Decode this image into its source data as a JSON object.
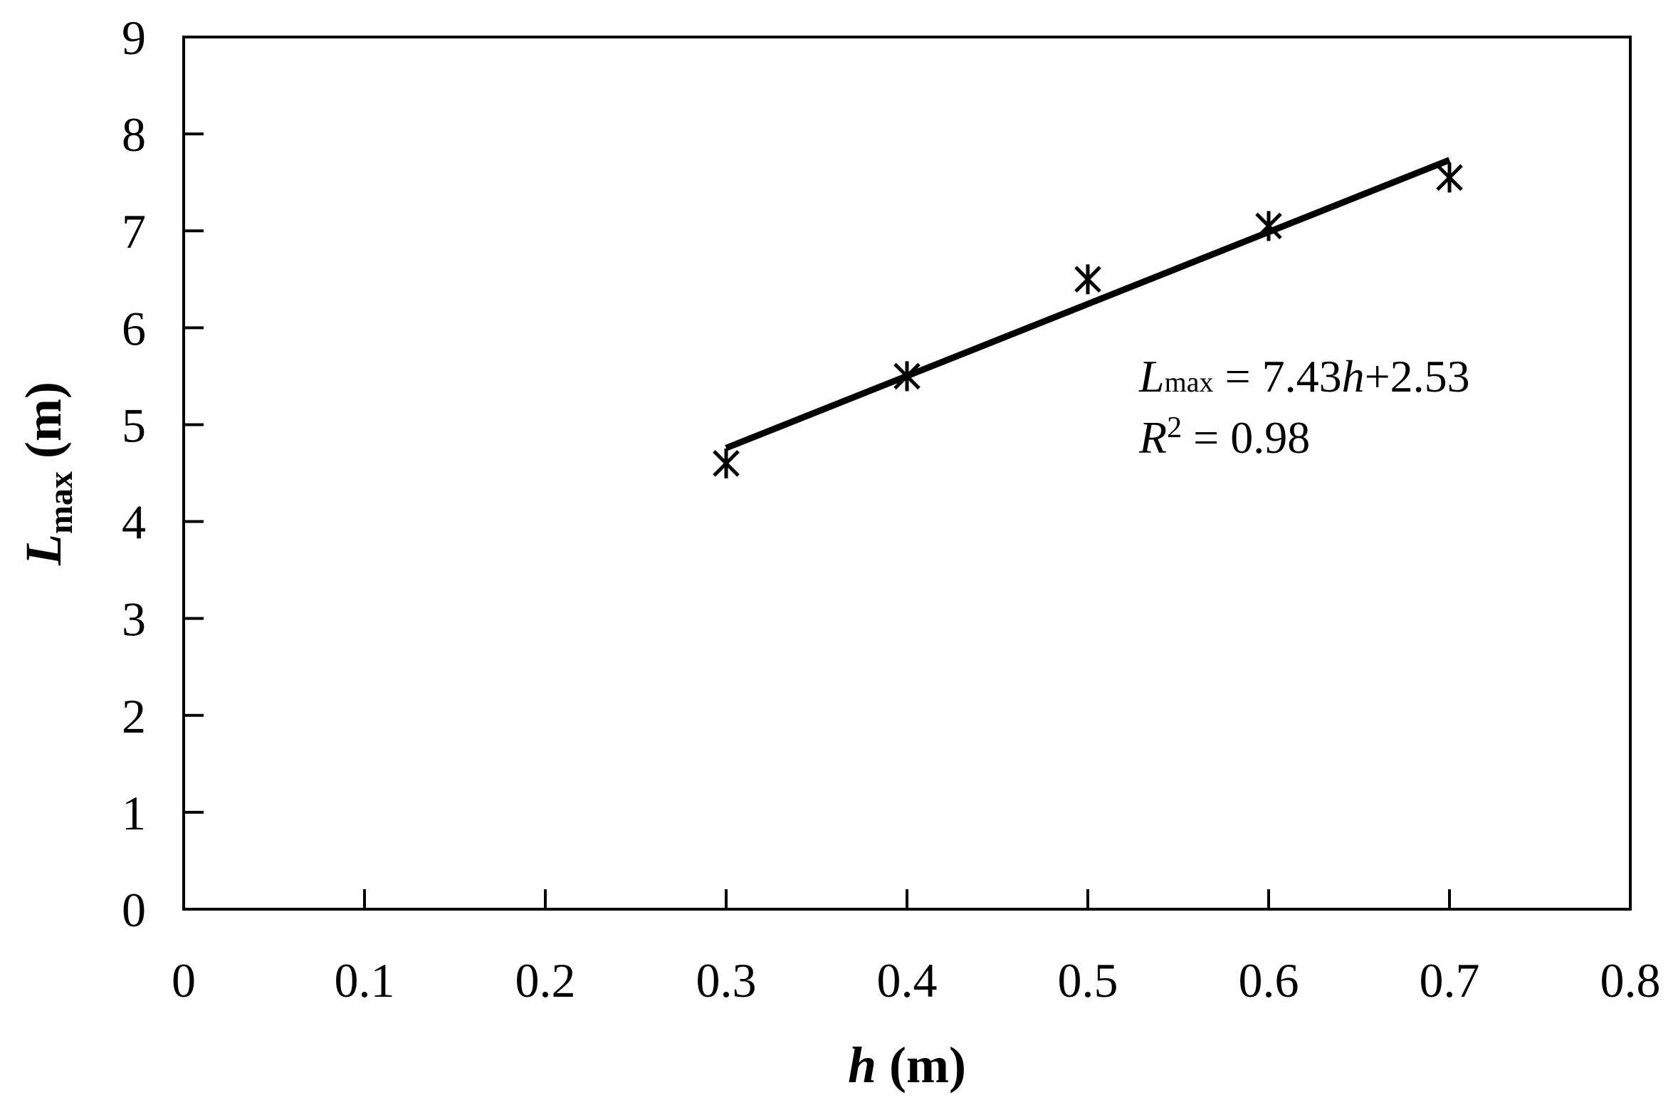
{
  "chart_data": {
    "type": "scatter",
    "xlabel": {
      "var": "h",
      "unit": " (m)"
    },
    "ylabel": {
      "var": "L",
      "sub": "max",
      "unit": " (m)"
    },
    "xlim": [
      0,
      0.8
    ],
    "ylim": [
      0,
      9
    ],
    "x_ticks": [
      "0",
      "0.1",
      "0.2",
      "0.3",
      "0.4",
      "0.5",
      "0.6",
      "0.7",
      "0.8"
    ],
    "y_ticks": [
      "0",
      "1",
      "2",
      "3",
      "4",
      "5",
      "6",
      "7",
      "8",
      "9"
    ],
    "marker": "asterisk",
    "grid": false,
    "legend": "none",
    "points": [
      {
        "x": 0.3,
        "y": 4.6
      },
      {
        "x": 0.4,
        "y": 5.5
      },
      {
        "x": 0.5,
        "y": 6.5
      },
      {
        "x": 0.6,
        "y": 7.05
      },
      {
        "x": 0.7,
        "y": 7.55
      }
    ],
    "trendline": {
      "slope": 7.43,
      "intercept": 2.53,
      "x_range": [
        0.3,
        0.7
      ]
    },
    "annotation": {
      "eq_var": "L",
      "eq_sub": "max",
      "eq_mid": " = 7.43",
      "eq_h": "h",
      "eq_tail": "+2.53",
      "r2_var": "R",
      "r2_sup": "2",
      "r2_tail": " = 0.98"
    },
    "colors": {
      "axis": "#000000",
      "marker": "#000000",
      "line": "#000000",
      "background": "#ffffff"
    }
  }
}
